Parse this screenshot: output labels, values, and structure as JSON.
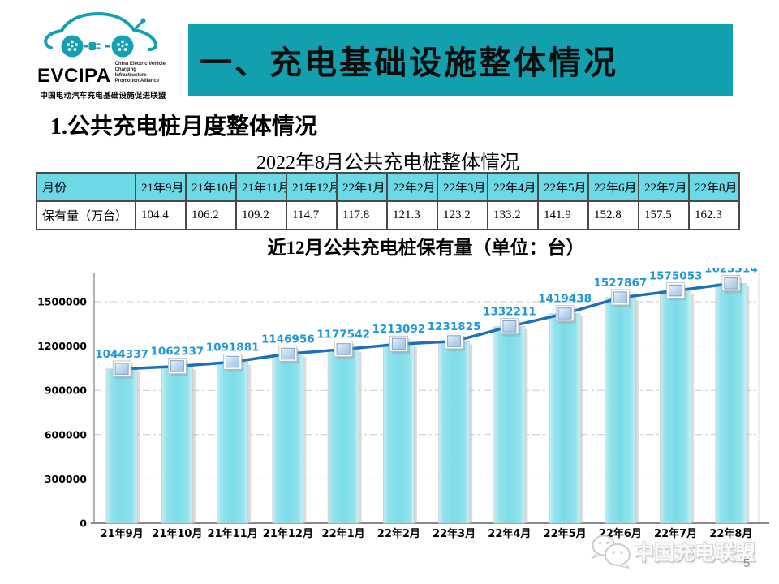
{
  "logo": {
    "acronym": "EVCIPA",
    "tagline_lines": [
      "China Electric Vehicle",
      "Charging Infrastructure",
      "Promotion Alliance"
    ],
    "chinese_name": "中国电动汽车充电基础设施促进联盟",
    "accent_color": "#14A0B0"
  },
  "banner": {
    "title": "一、充电基础设施整体情况",
    "bg_color": "#12A0AE"
  },
  "section": {
    "heading": "1.公共充电桩月度整体情况"
  },
  "table": {
    "title": "2022年8月公共充电桩整体情况",
    "header_bg": "#6CD9E7",
    "columns": [
      "月份",
      "21年9月",
      "21年10月",
      "21年11月",
      "21年12月",
      "22年1月",
      "22年2月",
      "22年3月",
      "22年4月",
      "22年5月",
      "22年6月",
      "22年7月",
      "22年8月"
    ],
    "rows": [
      [
        "保有量（万台）",
        "104.4",
        "106.2",
        "109.2",
        "114.7",
        "117.8",
        "121.3",
        "123.2",
        "133.2",
        "141.9",
        "152.8",
        "157.5",
        "162.3"
      ]
    ]
  },
  "chart_data": {
    "type": "bar",
    "overlay": "line",
    "title": "近12月公共充电桩保有量（单位：台）",
    "categories": [
      "21年9月",
      "21年10月",
      "21年11月",
      "21年12月",
      "22年1月",
      "22年2月",
      "22年3月",
      "22年4月",
      "22年5月",
      "22年6月",
      "22年7月",
      "22年8月"
    ],
    "values": [
      1044337,
      1062337,
      1091881,
      1146956,
      1177542,
      1213092,
      1231825,
      1332211,
      1419438,
      1527867,
      1575053,
      1623314
    ],
    "xlabel": "",
    "ylabel": "",
    "ylim": [
      0,
      1650000
    ],
    "yticks": [
      0,
      300000,
      600000,
      900000,
      1200000,
      1500000
    ],
    "grid": true,
    "legend": "none",
    "bar_color": "#7CDCE8",
    "line_color": "#1C6FBA",
    "label_color": "#2298D9"
  },
  "footer": {
    "watermark": "中国充电联盟",
    "page_number": "5"
  }
}
